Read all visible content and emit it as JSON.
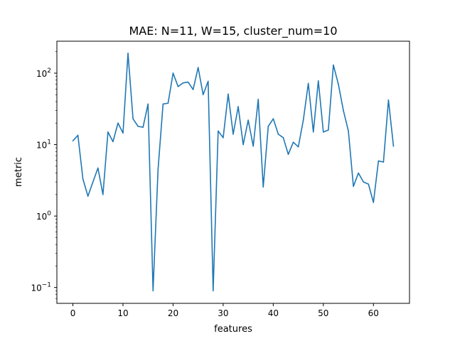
{
  "chart_data": {
    "type": "line",
    "title": "MAE: N=11, W=15, cluster_num=10",
    "xlabel": "features",
    "ylabel": "metric",
    "xlim": [
      -3.2,
      67.2
    ],
    "ylim": [
      0.06,
      280
    ],
    "y_scale": "log",
    "grid": false,
    "legend": "none",
    "x_ticks": [
      0,
      10,
      20,
      30,
      40,
      50,
      60
    ],
    "y_ticks": [
      {
        "base": "10",
        "exp": "−1",
        "value": 0.1
      },
      {
        "base": "10",
        "exp": "0",
        "value": 1
      },
      {
        "base": "10",
        "exp": "1",
        "value": 10
      },
      {
        "base": "10",
        "exp": "2",
        "value": 100
      }
    ],
    "series": [
      {
        "color": "#1f77b4",
        "x": [
          0,
          1,
          2,
          3,
          4,
          5,
          6,
          7,
          8,
          9,
          10,
          11,
          12,
          13,
          14,
          15,
          16,
          17,
          18,
          19,
          20,
          21,
          22,
          23,
          24,
          25,
          26,
          27,
          28,
          29,
          30,
          31,
          32,
          33,
          34,
          35,
          36,
          37,
          38,
          39,
          40,
          41,
          42,
          43,
          44,
          45,
          46,
          47,
          48,
          49,
          50,
          51,
          52,
          53,
          54,
          55,
          56,
          57,
          58,
          59,
          60,
          61,
          62,
          63,
          64
        ],
        "values": [
          11.3,
          13.5,
          3.3,
          1.9,
          3.0,
          4.7,
          2.0,
          15.0,
          11.0,
          20.0,
          14.5,
          190,
          23,
          18,
          17.5,
          37,
          0.09,
          4.5,
          37,
          38,
          100,
          65,
          73,
          75,
          59,
          120,
          50,
          77,
          0.09,
          15.5,
          12.5,
          51,
          14,
          34,
          10,
          22,
          9.5,
          43,
          2.55,
          18,
          23,
          14,
          12.5,
          7.3,
          10.8,
          9.3,
          22,
          72,
          15,
          78,
          15,
          16,
          130,
          70,
          30,
          15.5,
          2.6,
          4.0,
          3.0,
          2.8,
          1.55,
          5.9,
          5.7,
          42,
          9.5
        ]
      }
    ]
  }
}
